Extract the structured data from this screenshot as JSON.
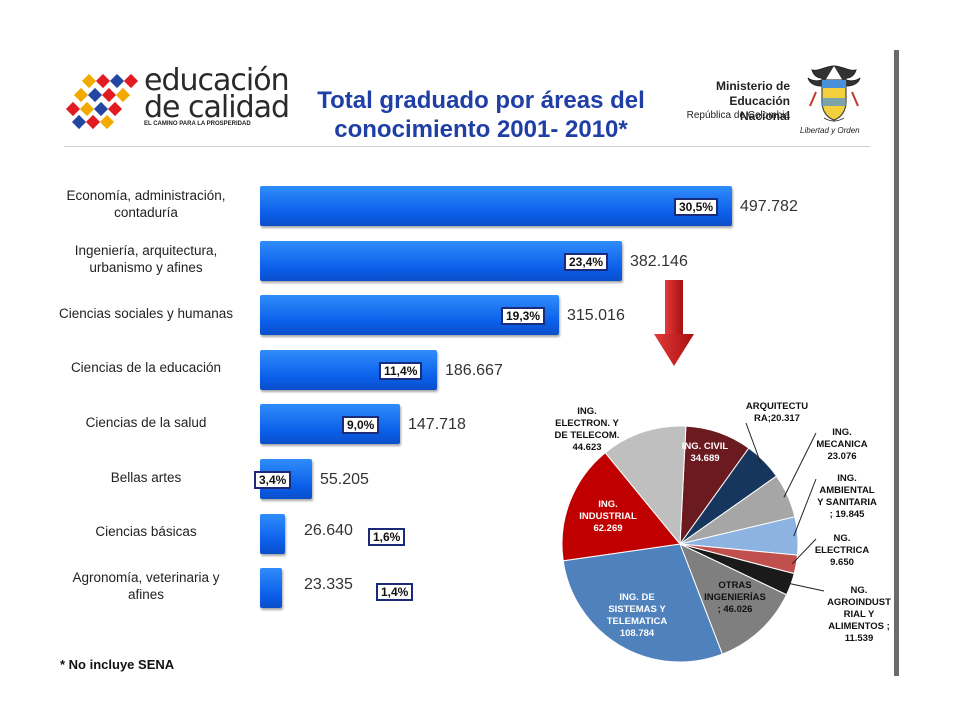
{
  "header": {
    "logo_line1": "educación",
    "logo_line2": "de calidad",
    "logo_tagline": "EL CAMINO PARA LA PROSPERIDAD",
    "title_line1": "Total graduado por áreas del",
    "title_line2": "conocimiento 2001- 2010*",
    "ministry_line1": "Ministerio de",
    "ministry_line2": "Educación Nacional",
    "ministry_line3": "República de Colombia",
    "motto": "Libertad y Orden"
  },
  "footnote": "* No incluye SENA",
  "chart_data": [
    {
      "type": "bar",
      "orientation": "horizontal",
      "categories": [
        "Economía, administración, contaduría",
        "Ingeniería, arquitectura, urbanismo y afines",
        "Ciencias sociales y humanas",
        "Ciencias de la educación",
        "Ciencias de la salud",
        "Bellas artes",
        "Ciencias básicas",
        "Agronomía, veterinaria y afines"
      ],
      "category_lines": [
        [
          "Economía, administración,",
          "contaduría"
        ],
        [
          "Ingeniería, arquitectura,",
          "urbanismo y afines"
        ],
        [
          "Ciencias sociales y humanas"
        ],
        [
          "Ciencias de la educación"
        ],
        [
          "Ciencias de la salud"
        ],
        [
          "Bellas artes"
        ],
        [
          "Ciencias básicas"
        ],
        [
          "Agronomía, veterinaria y",
          "afines"
        ]
      ],
      "values": [
        497782,
        382146,
        315016,
        186667,
        147718,
        55205,
        26640,
        23335
      ],
      "value_labels": [
        "497.782",
        "382.146",
        "315.016",
        "186.667",
        "147.718",
        "55.205",
        "26.640",
        "23.335"
      ],
      "percent_labels": [
        "30,5%",
        "23,4%",
        "19,3%",
        "11,4%",
        "9,0%",
        "3,4%",
        "1,6%",
        "1,4%"
      ],
      "color": "#1a6ff0"
    },
    {
      "type": "pie",
      "slices": [
        {
          "label_lines": [
            "ING. CIVIL",
            "34.689"
          ],
          "value": 34689,
          "color": "#6b1a1f"
        },
        {
          "label_lines": [
            "ARQUITECTU",
            "RA;20.317"
          ],
          "value": 20317,
          "color": "#17365d"
        },
        {
          "label_lines": [
            "ING.",
            "MECANICA",
            "23.076"
          ],
          "value": 23076,
          "color": "#a6a6a6"
        },
        {
          "label_lines": [
            "ING.",
            "AMBIENTAL",
            "Y SANITARIA",
            "; 19.845"
          ],
          "value": 19845,
          "color": "#8db3e2"
        },
        {
          "label_lines": [
            "NG.",
            "ELECTRICA",
            "9.650"
          ],
          "value": 9650,
          "color": "#c0504d"
        },
        {
          "label_lines": [
            "NG.",
            "AGROINDUST",
            "RIAL Y",
            "ALIMENTOS ;",
            "11.539"
          ],
          "value": 11539,
          "color": "#1a1a1a"
        },
        {
          "label_lines": [
            "OTRAS",
            "INGENIERÍAS",
            "; 46.026"
          ],
          "value": 46026,
          "color": "#7f7f7f"
        },
        {
          "label_lines": [
            "ING. DE",
            "SISTEMAS Y",
            "TELEMATICA",
            "108.784"
          ],
          "value": 108784,
          "color": "#4f81bd"
        },
        {
          "label_lines": [
            "ING.",
            "INDUSTRIAL",
            "62.269"
          ],
          "value": 62269,
          "color": "#c00000"
        },
        {
          "label_lines": [
            "ING.",
            "ELECTRON. Y",
            "DE TELECOM.",
            "44.623"
          ],
          "value": 44623,
          "color": "#bfbfbf"
        }
      ]
    }
  ]
}
